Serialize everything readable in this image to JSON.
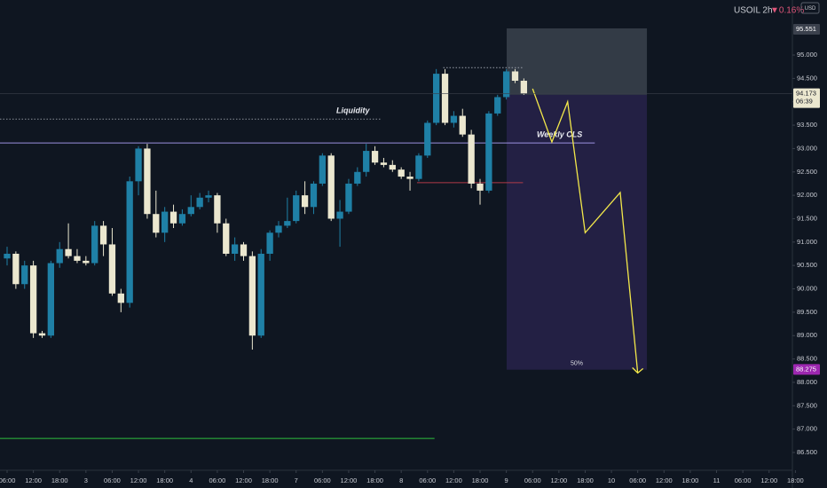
{
  "chart_data": {
    "type": "candlestick",
    "title": "USOIL 2h",
    "change": "▼0.16%",
    "currency": "USD",
    "countdown": "06:39",
    "up_color": "#1f80a6",
    "down_color": "#ebe7cf",
    "xlim": [
      -0.81,
      89.66
    ],
    "ylim": [
      86.12,
      96.177
    ],
    "xticks": [
      {
        "value": 0,
        "label": "06:00"
      },
      {
        "value": 3,
        "label": "12:00"
      },
      {
        "value": 6,
        "label": "18:00"
      },
      {
        "value": 9,
        "label": "3"
      },
      {
        "value": 12,
        "label": "06:00"
      },
      {
        "value": 15,
        "label": "12:00"
      },
      {
        "value": 18,
        "label": "18:00"
      },
      {
        "value": 21,
        "label": "4"
      },
      {
        "value": 24,
        "label": "06:00"
      },
      {
        "value": 27,
        "label": "12:00"
      },
      {
        "value": 30,
        "label": "18:00"
      },
      {
        "value": 33,
        "label": "7"
      },
      {
        "value": 36,
        "label": "06:00"
      },
      {
        "value": 39,
        "label": "12:00"
      },
      {
        "value": 42,
        "label": "18:00"
      },
      {
        "value": 45,
        "label": "8"
      },
      {
        "value": 48,
        "label": "06:00"
      },
      {
        "value": 51,
        "label": "12:00"
      },
      {
        "value": 54,
        "label": "18:00"
      },
      {
        "value": 57,
        "label": "9"
      },
      {
        "value": 60,
        "label": "06:00"
      },
      {
        "value": 63,
        "label": "12:00"
      },
      {
        "value": 66,
        "label": "18:00"
      },
      {
        "value": 69,
        "label": "10"
      },
      {
        "value": 72,
        "label": "06:00"
      },
      {
        "value": 75,
        "label": "12:00"
      },
      {
        "value": 78,
        "label": "18:00"
      },
      {
        "value": 81,
        "label": "11"
      },
      {
        "value": 84,
        "label": "06:00"
      },
      {
        "value": 87,
        "label": "12:00"
      },
      {
        "value": 90,
        "label": "18:00"
      }
    ],
    "yticks": [
      {
        "value": 86.5,
        "label": "86.500"
      },
      {
        "value": 87,
        "label": "87.000"
      },
      {
        "value": 87.5,
        "label": "87.500"
      },
      {
        "value": 88,
        "label": "88.000"
      },
      {
        "value": 88.5,
        "label": "88.500"
      },
      {
        "value": 89,
        "label": "89.000"
      },
      {
        "value": 89.5,
        "label": "89.500"
      },
      {
        "value": 90,
        "label": "90.000"
      },
      {
        "value": 90.5,
        "label": "90.500"
      },
      {
        "value": 91,
        "label": "91.000"
      },
      {
        "value": 91.5,
        "label": "91.500"
      },
      {
        "value": 92,
        "label": "92.000"
      },
      {
        "value": 92.5,
        "label": "92.500"
      },
      {
        "value": 93,
        "label": "93.000"
      },
      {
        "value": 93.5,
        "label": "93.500"
      },
      {
        "value": 94,
        "label": "94.000"
      },
      {
        "value": 94.5,
        "label": "94.500"
      },
      {
        "value": 95,
        "label": "95.000"
      }
    ],
    "candles": {
      "open": [
        90.65,
        90.75,
        90.1,
        90.5,
        89.05,
        89.0,
        90.55,
        90.85,
        90.7,
        90.6,
        90.55,
        91.35,
        90.95,
        89.9,
        89.7,
        92.3,
        93.0,
        91.6,
        91.2,
        91.65,
        91.4,
        91.6,
        91.75,
        91.95,
        92.0,
        91.4,
        90.75,
        90.95,
        90.7,
        89.0,
        90.75,
        91.2,
        91.35,
        91.45,
        92.0,
        91.75,
        92.25,
        92.85,
        91.5,
        91.65,
        92.25,
        92.5,
        92.95,
        92.7,
        92.65,
        92.55,
        92.4,
        92.35,
        92.85,
        93.55,
        94.6,
        93.55,
        93.7,
        93.3,
        92.25,
        92.1,
        93.75,
        94.1,
        94.65,
        94.45
      ],
      "high": [
        90.9,
        90.8,
        90.6,
        90.6,
        89.1,
        90.6,
        91.0,
        91.4,
        90.85,
        90.7,
        91.45,
        91.45,
        91.3,
        90.0,
        92.4,
        93.05,
        93.1,
        92.1,
        91.75,
        91.8,
        91.7,
        92.0,
        92.05,
        92.1,
        92.05,
        91.5,
        91.1,
        91.0,
        90.8,
        90.85,
        91.25,
        91.45,
        91.95,
        92.1,
        92.3,
        92.3,
        92.9,
        92.9,
        91.9,
        92.35,
        92.6,
        93.1,
        93.05,
        92.8,
        92.75,
        92.6,
        92.5,
        92.9,
        93.6,
        94.7,
        94.7,
        93.8,
        93.85,
        93.4,
        92.35,
        93.8,
        94.15,
        94.7,
        94.7,
        94.5
      ],
      "low": [
        90.5,
        90.0,
        90.0,
        88.95,
        88.95,
        88.95,
        90.45,
        90.65,
        90.55,
        90.5,
        90.5,
        90.7,
        89.85,
        89.5,
        89.6,
        92.0,
        91.5,
        91.1,
        91.0,
        91.3,
        91.35,
        91.55,
        91.7,
        91.85,
        91.2,
        90.7,
        90.6,
        90.6,
        88.7,
        88.95,
        90.6,
        91.1,
        91.3,
        91.4,
        91.6,
        91.6,
        92.2,
        91.45,
        90.9,
        91.6,
        92.2,
        92.4,
        92.65,
        92.6,
        92.5,
        92.35,
        92.1,
        92.3,
        92.8,
        93.5,
        93.5,
        93.45,
        93.25,
        92.15,
        91.8,
        92.05,
        93.7,
        94.05,
        94.4,
        94.15
      ],
      "close": [
        90.75,
        90.1,
        90.5,
        89.05,
        89.0,
        90.55,
        90.85,
        90.7,
        90.6,
        90.55,
        91.35,
        90.95,
        89.9,
        89.7,
        92.3,
        93.0,
        91.6,
        91.2,
        91.65,
        91.4,
        91.6,
        91.75,
        91.95,
        92.0,
        91.4,
        90.75,
        90.95,
        90.7,
        89.0,
        90.75,
        91.2,
        91.35,
        91.45,
        92.0,
        91.75,
        92.25,
        92.85,
        91.5,
        91.65,
        92.25,
        92.5,
        92.95,
        92.7,
        92.65,
        92.55,
        92.4,
        92.35,
        92.85,
        93.55,
        94.6,
        93.55,
        93.7,
        93.3,
        92.25,
        92.1,
        93.75,
        94.1,
        94.65,
        94.45,
        94.173
      ]
    },
    "price_tags": [
      {
        "value": 95.551,
        "color": "#3b414d"
      },
      {
        "value": 94.173,
        "color": "#ebe7cf"
      },
      {
        "value": 88.275,
        "color": "#9c27b0"
      }
    ],
    "levels": [
      {
        "label": "Liquidity",
        "value": 93.63,
        "x": [
          -0.81,
          42.8
        ],
        "color": "#8a8f99",
        "dash": true
      },
      {
        "label": "Weekly CLS",
        "value": 93.12,
        "x": [
          -0.81,
          67.1
        ],
        "color": "#9b8fe0",
        "dash": false
      }
    ],
    "lines": [
      {
        "value": 86.8,
        "x": [
          -0.81,
          48.8
        ],
        "color": "#2fbf3f",
        "dash": false
      },
      {
        "value": 92.27,
        "x": [
          46.8,
          58.9
        ],
        "color": "#b03a48",
        "dash": false
      },
      {
        "value": 94.73,
        "x": [
          49.8,
          58.9
        ],
        "color": "#9aa0aa",
        "dash": true
      }
    ],
    "boxes": [
      {
        "x": [
          57.04,
          73.05
        ],
        "y": [
          94.15,
          95.57
        ],
        "color": "rgba(120,128,140,0.35)"
      },
      {
        "x": [
          57.04,
          73.05
        ],
        "y": [
          88.27,
          94.15
        ],
        "color": "rgba(90,60,160,0.28)",
        "label": "50%"
      }
    ],
    "projection": {
      "x": [
        60,
        62.2,
        64,
        66,
        70,
        72
      ],
      "y": [
        94.28,
        93.14,
        94.0,
        91.2,
        92.06,
        88.2
      ],
      "color": "#f3e84a"
    }
  }
}
